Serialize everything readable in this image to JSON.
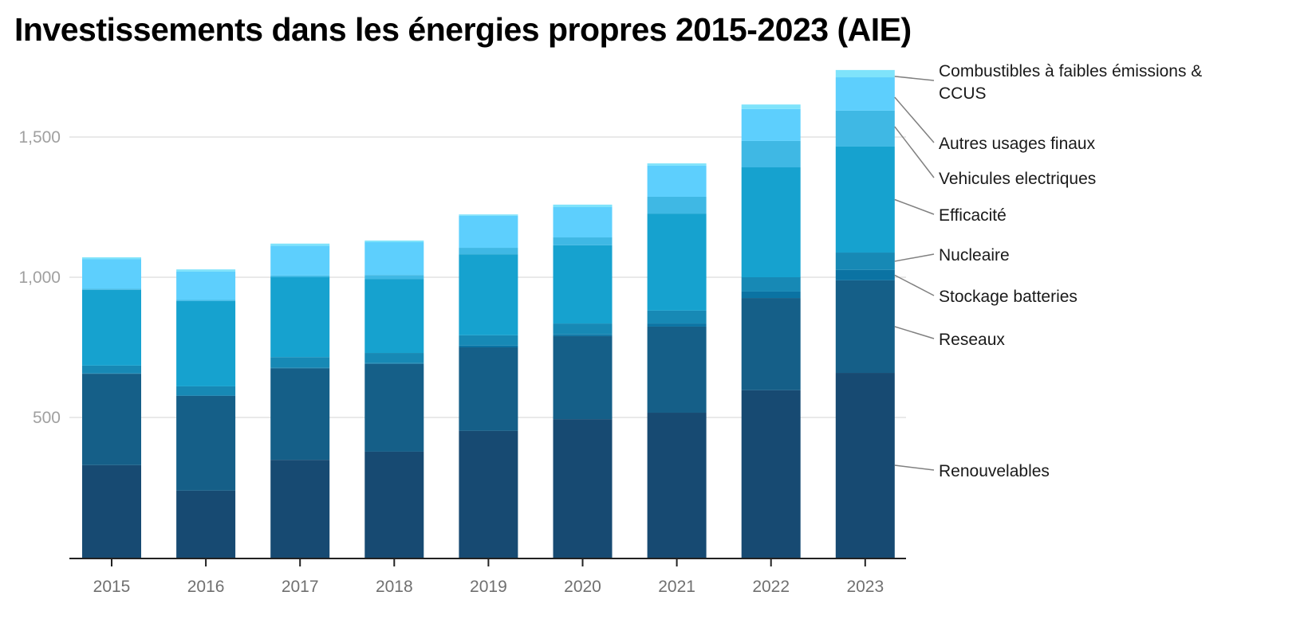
{
  "chart_data": {
    "type": "bar",
    "stacked": true,
    "title": "Investissements dans les énergies propres 2015-2023 (AIE)",
    "xlabel": "",
    "ylabel": "",
    "ylim": [
      0,
      1750
    ],
    "yticks": [
      500,
      1000,
      1500
    ],
    "ytick_labels": [
      "500",
      "1,000",
      "1,500"
    ],
    "grid": true,
    "legend": "direct labels right of last bar",
    "categories": [
      "2015",
      "2016",
      "2017",
      "2018",
      "2019",
      "2020",
      "2021",
      "2022",
      "2023"
    ],
    "series": [
      {
        "name": "Renouvelables",
        "color": "#174a72",
        "values": [
          330,
          239,
          349,
          378,
          452,
          494,
          517,
          597,
          659
        ]
      },
      {
        "name": "Reseaux",
        "color": "#155f88",
        "values": [
          326,
          338,
          326,
          313,
          298,
          296,
          307,
          329,
          330
        ]
      },
      {
        "name": "Stockage batteries",
        "color": "#0b73a3",
        "values": [
          1,
          1,
          2,
          3,
          6,
          6,
          11,
          23,
          37
        ]
      },
      {
        "name": "Nucleaire",
        "color": "#1789b5",
        "values": [
          28,
          33,
          38,
          36,
          37,
          39,
          46,
          51,
          62
        ]
      },
      {
        "name": "Efficacité",
        "color": "#16a2cf",
        "values": [
          270,
          304,
          285,
          264,
          289,
          279,
          346,
          392,
          378
        ]
      },
      {
        "name": "Vehicules electriques",
        "color": "#3fb8e4",
        "values": [
          4,
          4,
          6,
          14,
          23,
          28,
          60,
          94,
          128
        ]
      },
      {
        "name": "Autres usages finaux",
        "color": "#5dcffd",
        "values": [
          106,
          101,
          106,
          117,
          114,
          108,
          111,
          114,
          119
        ]
      },
      {
        "name": "Combustibles à faibles émissions & CCUS",
        "label_lines": [
          "Combustibles à faibles émissions &",
          "CCUS"
        ],
        "color": "#7fe3fb",
        "values": [
          6,
          8,
          8,
          6,
          5,
          9,
          8,
          16,
          26
        ]
      }
    ]
  }
}
